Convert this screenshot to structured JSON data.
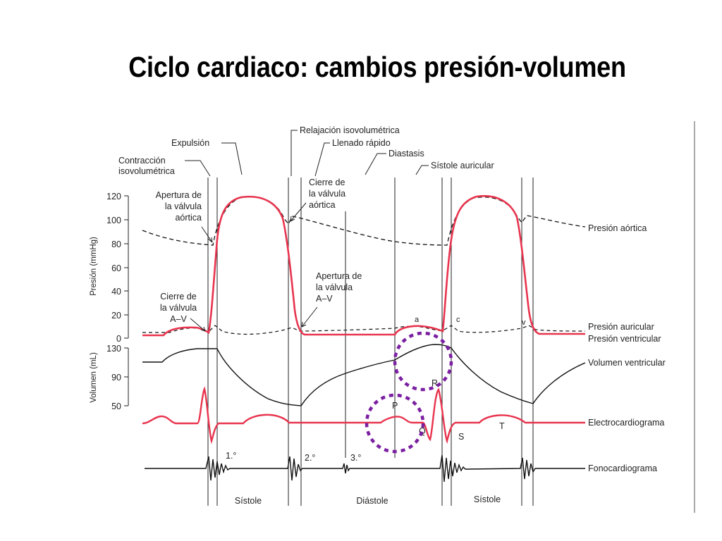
{
  "title": "Ciclo cardiaco: cambios presión-volumen",
  "phases": {
    "contraccion": [
      "Contracción",
      "isovolumétrica"
    ],
    "expulsion": "Expulsión",
    "relajacion": "Relajación isovolumétrica",
    "llenado": "Llenado rápido",
    "diastasis": "Diastasis",
    "sistole_auricular": "Sístole auricular"
  },
  "annotations": {
    "apertura_aortica": [
      "Apertura de",
      "la válvula",
      "aórtica"
    ],
    "cierre_aortica": [
      "Cierre de",
      "la válvula",
      "aórtica"
    ],
    "apertura_av": [
      "Apertura de",
      "la válvula",
      "A–V"
    ],
    "cierre_av": [
      "Cierre de",
      "la válvula",
      "A–V"
    ],
    "wave_a": "a",
    "wave_c": "c",
    "wave_v": "v"
  },
  "axes": {
    "pressure_label": "Presión (mmHg)",
    "pressure_ticks": [
      "120",
      "100",
      "80",
      "60",
      "40",
      "20",
      "0"
    ],
    "volume_label": "Volumen (mL)",
    "volume_ticks": [
      "130",
      "90",
      "50"
    ]
  },
  "traces": {
    "presion_aortica": "Presión aórtica",
    "presion_auricular": "Presión auricular",
    "presion_ventricular": "Presión ventricular",
    "volumen_ventricular": "Volumen ventricular",
    "electrocardiograma": "Electrocardiograma",
    "fonocardiograma": "Fonocardiograma"
  },
  "ecg_waves": {
    "p": "P",
    "q": "Q",
    "r": "R",
    "s": "S",
    "t": "T"
  },
  "heart_sounds": {
    "first": "1.°",
    "second": "2.°",
    "third": "3.°"
  },
  "periods": {
    "sistole1": "Sístole",
    "diastole": "Diástole",
    "sistole2": "Sístole"
  },
  "colors": {
    "red_trace": "#e8344e",
    "black_trace": "#111111",
    "highlight_circle": "#7b1fa2"
  }
}
